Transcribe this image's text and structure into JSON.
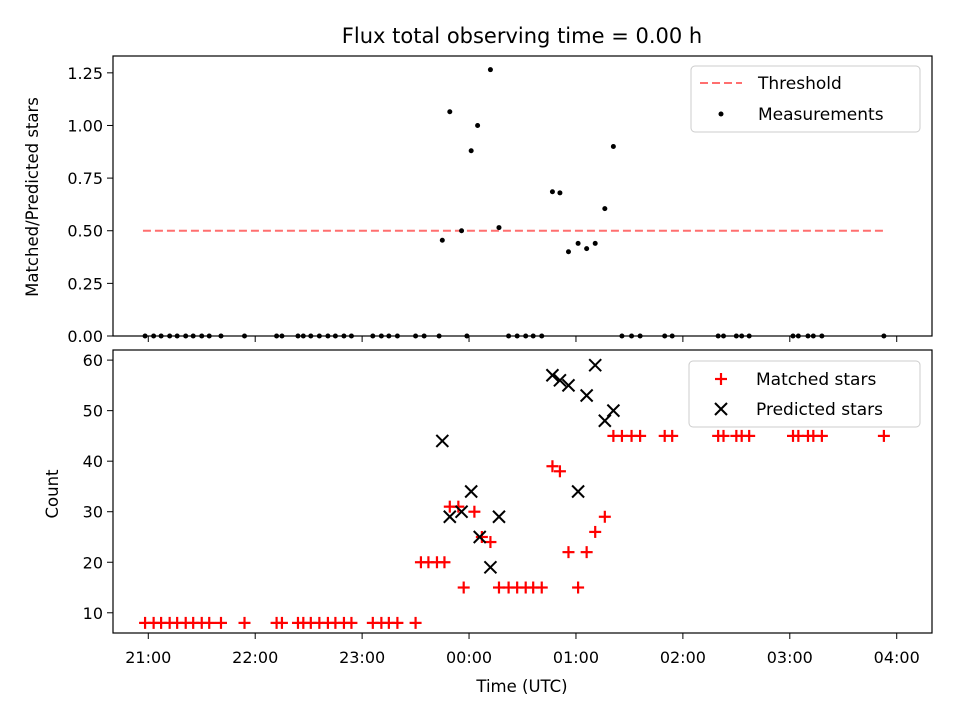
{
  "figure": {
    "title": "Flux total observing time = 0.00 h"
  },
  "chart_data": [
    {
      "type": "scatter",
      "ylabel": "Matched/Predicted stars",
      "xlabel": "",
      "x_unit": "hours after 21:00 UTC",
      "xlim": [
        -0.33,
        7.33
      ],
      "ylim": [
        0,
        1.33
      ],
      "yticks": [
        0,
        0.25,
        0.5,
        0.75,
        1.0,
        1.25
      ],
      "ytick_labels": [
        "0.00",
        "0.25",
        "0.50",
        "0.75",
        "1.00",
        "1.25"
      ],
      "grid": false,
      "legend": {
        "position": "top-right",
        "entries": [
          "Threshold",
          "Measurements"
        ]
      },
      "threshold": {
        "name": "Threshold",
        "y": 0.5,
        "x_range": [
          -0.05,
          6.9
        ],
        "color": "#ff6f6f"
      },
      "series": [
        {
          "name": "Measurements",
          "color": "#000000",
          "points": [
            [
              -0.03,
              0
            ],
            [
              0.05,
              0
            ],
            [
              0.12,
              0
            ],
            [
              0.2,
              0
            ],
            [
              0.27,
              0
            ],
            [
              0.35,
              0
            ],
            [
              0.42,
              0
            ],
            [
              0.5,
              0
            ],
            [
              0.57,
              0
            ],
            [
              0.68,
              0
            ],
            [
              0.9,
              0
            ],
            [
              1.2,
              0
            ],
            [
              1.25,
              0
            ],
            [
              1.4,
              0
            ],
            [
              1.45,
              0
            ],
            [
              1.52,
              0
            ],
            [
              1.6,
              0
            ],
            [
              1.68,
              0
            ],
            [
              1.75,
              0
            ],
            [
              1.83,
              0
            ],
            [
              1.9,
              0
            ],
            [
              2.1,
              0
            ],
            [
              2.18,
              0
            ],
            [
              2.25,
              0
            ],
            [
              2.33,
              0
            ],
            [
              2.5,
              0
            ],
            [
              2.58,
              0
            ],
            [
              2.72,
              0
            ],
            [
              2.75,
              0.455
            ],
            [
              2.98,
              0
            ],
            [
              2.82,
              1.065
            ],
            [
              2.93,
              0.5
            ],
            [
              3.02,
              0.88
            ],
            [
              3.08,
              1.0
            ],
            [
              3.2,
              1.265
            ],
            [
              3.28,
              0.515
            ],
            [
              3.37,
              0
            ],
            [
              3.45,
              0
            ],
            [
              3.53,
              0
            ],
            [
              3.6,
              0
            ],
            [
              3.68,
              0
            ],
            [
              3.78,
              0.685
            ],
            [
              3.85,
              0.68
            ],
            [
              3.93,
              0.4
            ],
            [
              4.02,
              0.44
            ],
            [
              4.1,
              0.415
            ],
            [
              4.18,
              0.44
            ],
            [
              4.27,
              0.605
            ],
            [
              4.35,
              0.9
            ],
            [
              4.43,
              0
            ],
            [
              4.52,
              0
            ],
            [
              4.6,
              0
            ],
            [
              4.83,
              0
            ],
            [
              4.9,
              0
            ],
            [
              5.33,
              0
            ],
            [
              5.38,
              0
            ],
            [
              5.5,
              0
            ],
            [
              5.55,
              0
            ],
            [
              5.62,
              0
            ],
            [
              6.03,
              0
            ],
            [
              6.08,
              0
            ],
            [
              6.17,
              0
            ],
            [
              6.22,
              0
            ],
            [
              6.3,
              0
            ],
            [
              6.88,
              0
            ]
          ]
        }
      ]
    },
    {
      "type": "scatter",
      "ylabel": "Count",
      "xlabel": "Time (UTC)",
      "x_unit": "hours after 21:00 UTC",
      "xlim": [
        -0.33,
        7.33
      ],
      "ylim": [
        6,
        62
      ],
      "yticks": [
        10,
        20,
        30,
        40,
        50,
        60
      ],
      "xticks": [
        0,
        1,
        2,
        3,
        4,
        5,
        6,
        7
      ],
      "xtick_labels": [
        "21:00",
        "22:00",
        "23:00",
        "00:00",
        "01:00",
        "02:00",
        "03:00",
        "04:00"
      ],
      "grid": false,
      "legend": {
        "position": "top-right",
        "entries": [
          "Matched stars",
          "Predicted stars"
        ]
      },
      "series": [
        {
          "name": "Matched stars",
          "marker": "plus",
          "color": "#ff0000",
          "points": [
            [
              -0.03,
              8
            ],
            [
              0.05,
              8
            ],
            [
              0.12,
              8
            ],
            [
              0.2,
              8
            ],
            [
              0.27,
              8
            ],
            [
              0.35,
              8
            ],
            [
              0.42,
              8
            ],
            [
              0.5,
              8
            ],
            [
              0.57,
              8
            ],
            [
              0.68,
              8
            ],
            [
              0.9,
              8
            ],
            [
              1.2,
              8
            ],
            [
              1.25,
              8
            ],
            [
              1.4,
              8
            ],
            [
              1.45,
              8
            ],
            [
              1.52,
              8
            ],
            [
              1.6,
              8
            ],
            [
              1.68,
              8
            ],
            [
              1.75,
              8
            ],
            [
              1.83,
              8
            ],
            [
              1.9,
              8
            ],
            [
              2.1,
              8
            ],
            [
              2.18,
              8
            ],
            [
              2.25,
              8
            ],
            [
              2.33,
              8
            ],
            [
              2.5,
              8
            ],
            [
              2.55,
              20
            ],
            [
              2.62,
              20
            ],
            [
              2.7,
              20
            ],
            [
              2.77,
              20
            ],
            [
              2.82,
              31
            ],
            [
              2.9,
              31
            ],
            [
              2.95,
              15
            ],
            [
              3.05,
              30
            ],
            [
              3.12,
              25
            ],
            [
              3.2,
              24
            ],
            [
              3.28,
              15
            ],
            [
              3.37,
              15
            ],
            [
              3.45,
              15
            ],
            [
              3.53,
              15
            ],
            [
              3.6,
              15
            ],
            [
              3.68,
              15
            ],
            [
              3.78,
              39
            ],
            [
              3.85,
              38
            ],
            [
              3.93,
              22
            ],
            [
              4.02,
              15
            ],
            [
              4.1,
              22
            ],
            [
              4.18,
              26
            ],
            [
              4.27,
              29
            ],
            [
              4.35,
              45
            ],
            [
              4.43,
              45
            ],
            [
              4.52,
              45
            ],
            [
              4.6,
              45
            ],
            [
              4.83,
              45
            ],
            [
              4.9,
              45
            ],
            [
              5.33,
              45
            ],
            [
              5.38,
              45
            ],
            [
              5.5,
              45
            ],
            [
              5.55,
              45
            ],
            [
              5.62,
              45
            ],
            [
              6.03,
              45
            ],
            [
              6.08,
              45
            ],
            [
              6.17,
              45
            ],
            [
              6.22,
              45
            ],
            [
              6.3,
              45
            ],
            [
              6.88,
              45
            ]
          ]
        },
        {
          "name": "Predicted stars",
          "marker": "x",
          "color": "#000000",
          "points": [
            [
              2.75,
              44
            ],
            [
              2.82,
              29
            ],
            [
              2.93,
              30
            ],
            [
              3.02,
              34
            ],
            [
              3.1,
              25
            ],
            [
              3.2,
              19
            ],
            [
              3.28,
              29
            ],
            [
              3.78,
              57
            ],
            [
              3.85,
              56
            ],
            [
              3.93,
              55
            ],
            [
              4.02,
              34
            ],
            [
              4.1,
              53
            ],
            [
              4.18,
              59
            ],
            [
              4.27,
              48
            ],
            [
              4.35,
              50
            ]
          ]
        }
      ]
    }
  ]
}
